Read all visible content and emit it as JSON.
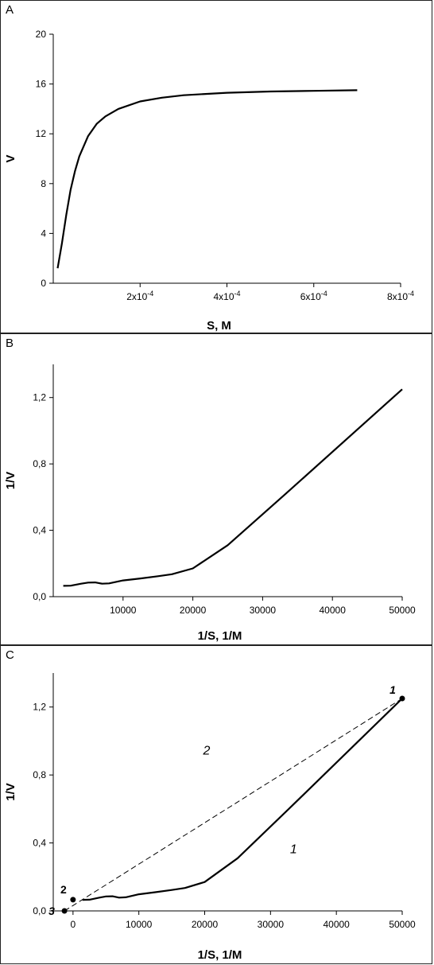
{
  "panels": [
    {
      "label": "A"
    },
    {
      "label": "B"
    },
    {
      "label": "C"
    }
  ],
  "chart_data": [
    {
      "type": "line",
      "panel": "A",
      "xlabel": "S,  M",
      "ylabel": "V",
      "xlim": [
        0,
        0.0008
      ],
      "ylim": [
        0,
        20
      ],
      "x_ticks": [
        {
          "value": 0.0002,
          "label": "2x10",
          "exp": "-4"
        },
        {
          "value": 0.0004,
          "label": "4x10",
          "exp": "-4"
        },
        {
          "value": 0.0006,
          "label": "6x10",
          "exp": "-4"
        },
        {
          "value": 0.0008,
          "label": "8x10",
          "exp": "-4"
        }
      ],
      "y_ticks": [
        {
          "value": 0,
          "label": "0"
        },
        {
          "value": 4,
          "label": "4"
        },
        {
          "value": 8,
          "label": "8"
        },
        {
          "value": 12,
          "label": "12"
        },
        {
          "value": 16,
          "label": "16"
        },
        {
          "value": 20,
          "label": "20"
        }
      ],
      "series": [
        {
          "x": [
            1e-05,
            2e-05,
            3e-05,
            4e-05,
            5e-05,
            6e-05,
            8e-05,
            0.0001,
            0.00012,
            0.00015,
            0.0002,
            0.00025,
            0.0003,
            0.0004,
            0.0005,
            0.0006,
            0.0007
          ],
          "y": [
            1.2,
            3.2,
            5.5,
            7.5,
            9.0,
            10.2,
            11.8,
            12.8,
            13.4,
            14.0,
            14.6,
            14.9,
            15.1,
            15.3,
            15.4,
            15.45,
            15.5
          ]
        }
      ]
    },
    {
      "type": "line",
      "panel": "B",
      "xlabel": "1/S, 1/M",
      "ylabel": "1/V",
      "xlim": [
        0,
        50000
      ],
      "ylim": [
        0,
        1.4
      ],
      "x_ticks": [
        {
          "value": 10000,
          "label": "10000"
        },
        {
          "value": 20000,
          "label": "20000"
        },
        {
          "value": 30000,
          "label": "30000"
        },
        {
          "value": 40000,
          "label": "40000"
        },
        {
          "value": 50000,
          "label": "50000"
        }
      ],
      "y_ticks": [
        {
          "value": 0,
          "label": "0,0"
        },
        {
          "value": 0.4,
          "label": "0,4"
        },
        {
          "value": 0.8,
          "label": "0,8"
        },
        {
          "value": 1.2,
          "label": "1,2"
        }
      ],
      "series": [
        {
          "x": [
            1430,
            2500,
            4000,
            5000,
            6000,
            7000,
            8000,
            10000,
            12500,
            15000,
            17000,
            20000,
            25000,
            33300,
            50000
          ],
          "y": [
            0.065,
            0.066,
            0.078,
            0.085,
            0.086,
            0.078,
            0.08,
            0.098,
            0.11,
            0.123,
            0.135,
            0.17,
            0.31,
            0.62,
            1.25
          ]
        }
      ]
    },
    {
      "type": "line",
      "panel": "C",
      "xlabel": "1/S, 1/M",
      "ylabel": "1/V",
      "xlim": [
        -3000,
        50000
      ],
      "ylim": [
        0,
        1.4
      ],
      "x_ticks": [
        {
          "value": 0,
          "label": "0"
        },
        {
          "value": 10000,
          "label": "10000"
        },
        {
          "value": 20000,
          "label": "20000"
        },
        {
          "value": 30000,
          "label": "30000"
        },
        {
          "value": 40000,
          "label": "40000"
        },
        {
          "value": 50000,
          "label": "50000"
        }
      ],
      "y_ticks": [
        {
          "value": 0,
          "label": "0,0"
        },
        {
          "value": 0.4,
          "label": "0,4"
        },
        {
          "value": 0.8,
          "label": "0,8"
        },
        {
          "value": 1.2,
          "label": "1,2"
        }
      ],
      "series": [
        {
          "name": "1",
          "style": "solid",
          "x": [
            1430,
            2500,
            4000,
            5000,
            6000,
            7000,
            8000,
            10000,
            12500,
            15000,
            17000,
            20000,
            25000,
            33300,
            50000
          ],
          "y": [
            0.065,
            0.066,
            0.078,
            0.085,
            0.086,
            0.078,
            0.08,
            0.098,
            0.11,
            0.123,
            0.135,
            0.17,
            0.31,
            0.62,
            1.25
          ]
        },
        {
          "name": "2",
          "style": "dashed",
          "x": [
            -1300,
            50000
          ],
          "y": [
            0.0,
            1.25
          ]
        }
      ],
      "points": [
        {
          "label": "1",
          "x": 50000,
          "y": 1.25
        },
        {
          "label": "2",
          "x": 0,
          "y": 0.066
        },
        {
          "label": "3",
          "x": -1300,
          "y": 0.0
        }
      ],
      "annotations": [
        {
          "text": "1",
          "x": 33500,
          "y": 0.34
        },
        {
          "text": "2",
          "x": 20300,
          "y": 0.92
        }
      ]
    }
  ]
}
